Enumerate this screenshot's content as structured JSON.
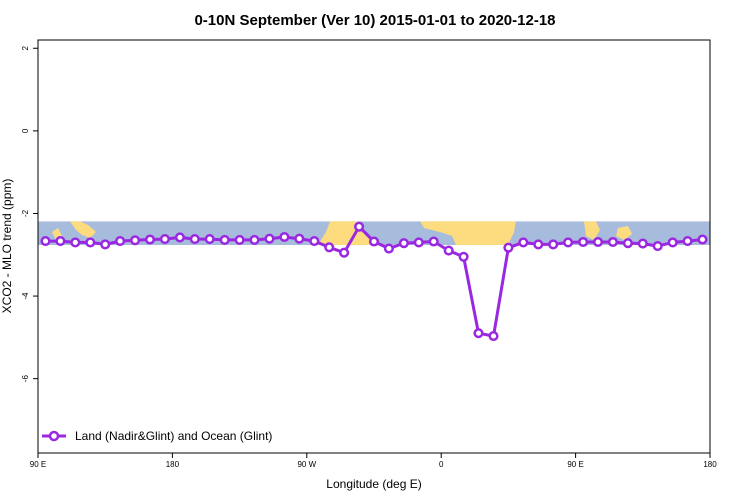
{
  "chart_data": {
    "type": "line",
    "title": "0-10N September (Ver 10)   2015-01-01 to 2020-12-18",
    "xlabel": "Longitude (deg E)",
    "ylabel": "XCO2 - MLO trend (ppm)",
    "x_ticks": [
      {
        "lon": 90,
        "label": "90 E"
      },
      {
        "lon": 180,
        "label": "180"
      },
      {
        "lon": 270,
        "label": "90 W"
      },
      {
        "lon": 360,
        "label": "0"
      },
      {
        "lon": 450,
        "label": "90 E"
      },
      {
        "lon": 540,
        "label": "180"
      }
    ],
    "y_ticks": [
      2,
      0,
      -2,
      -4,
      -6
    ],
    "xlim": [
      90,
      540
    ],
    "ylim": [
      -7.8,
      2.2
    ],
    "grid": false,
    "legend_position": "bottom-left",
    "series": [
      {
        "name": "Land (Nadir&Glint) and Ocean (Glint)",
        "color": "#9a28e0",
        "x": [
          95,
          105,
          115,
          125,
          135,
          145,
          155,
          165,
          175,
          185,
          195,
          205,
          215,
          225,
          235,
          245,
          255,
          265,
          275,
          285,
          295,
          305,
          315,
          325,
          335,
          345,
          355,
          365,
          375,
          385,
          395,
          405,
          415,
          425,
          435,
          445,
          455,
          465,
          475,
          485,
          495,
          505,
          515,
          525,
          535
        ],
        "values": [
          -2.67,
          -2.67,
          -2.7,
          -2.7,
          -2.75,
          -2.67,
          -2.65,
          -2.63,
          -2.62,
          -2.58,
          -2.62,
          -2.62,
          -2.64,
          -2.64,
          -2.64,
          -2.61,
          -2.57,
          -2.61,
          -2.67,
          -2.82,
          -2.95,
          -2.32,
          -2.68,
          -2.85,
          -2.72,
          -2.7,
          -2.68,
          -2.9,
          -3.05,
          -4.9,
          -4.97,
          -2.83,
          -2.7,
          -2.75,
          -2.75,
          -2.7,
          -2.69,
          -2.69,
          -2.69,
          -2.72,
          -2.73,
          -2.79,
          -2.7,
          -2.67,
          -2.63
        ]
      }
    ],
    "colors": {
      "ocean": "#a7bcdc",
      "land": "#fddb7f",
      "line": "#9a28e0",
      "marker_fill": "#ffffff"
    }
  }
}
